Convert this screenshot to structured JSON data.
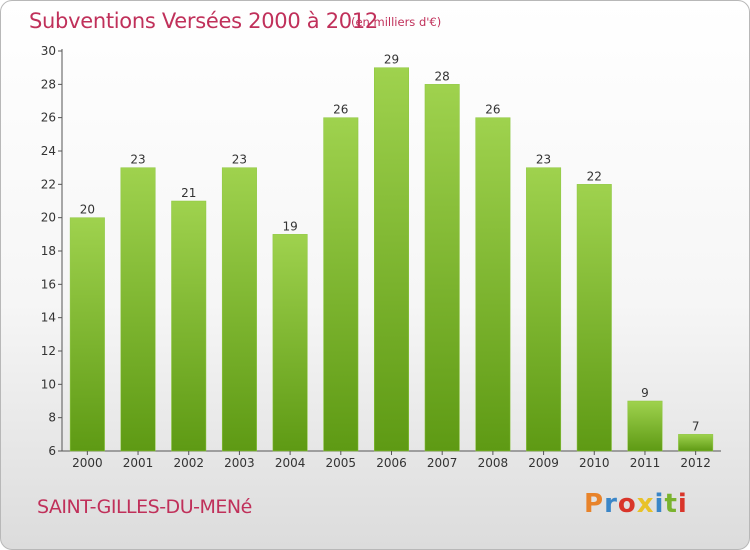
{
  "header": {
    "title": "Subventions Versées 2000 à 2012",
    "subtitle": "(en milliers d'€)"
  },
  "footer": {
    "commune": "SAINT-GILLES-DU-MENé",
    "logo_text": "Proxiti",
    "logo_colors": [
      "#e8832a",
      "#3a86c8",
      "#d9352a",
      "#e8c229",
      "#3a86c8",
      "#7ab32e",
      "#d9352a"
    ]
  },
  "chart_data": {
    "type": "bar",
    "categories": [
      "2000",
      "2001",
      "2002",
      "2003",
      "2004",
      "2005",
      "2006",
      "2007",
      "2008",
      "2009",
      "2010",
      "2011",
      "2012"
    ],
    "values": [
      20,
      23,
      21,
      23,
      19,
      26,
      29,
      28,
      26,
      23,
      22,
      9,
      7
    ],
    "title": "Subventions Versées 2000 à 2012",
    "subtitle": "(en milliers d'€)",
    "xlabel": "",
    "ylabel": "",
    "ylim": [
      6,
      30
    ],
    "yticks": [
      6,
      8,
      10,
      12,
      14,
      16,
      18,
      20,
      22,
      24,
      26,
      28,
      30
    ],
    "grid": false,
    "bar_color": "#7fbf30",
    "text_color": "#c0305a"
  }
}
